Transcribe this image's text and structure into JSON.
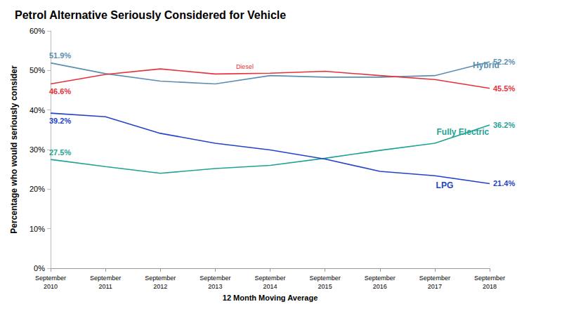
{
  "chart_data": {
    "type": "line",
    "title": "Petrol Alternative Seriously Considered for Vehicle",
    "x_label": "12 Month Moving Average",
    "y_label": "Percentage who would seriously consider",
    "categories": [
      "September 2010",
      "September 2011",
      "September 2012",
      "September 2013",
      "September 2014",
      "September 2015",
      "September 2016",
      "September 2017",
      "September 2018"
    ],
    "series": [
      {
        "name": "Hybrid",
        "color": "#5b8fb0",
        "values": [
          51.9,
          49.2,
          47.3,
          46.6,
          48.7,
          48.3,
          48.3,
          48.7,
          52.2
        ],
        "value_labels": [
          "51.9%",
          null,
          null,
          null,
          null,
          null,
          null,
          null,
          "52.2%"
        ]
      },
      {
        "name": "Diesel",
        "color": "#e5323a",
        "values": [
          46.6,
          49.0,
          50.4,
          49.1,
          49.3,
          49.8,
          48.7,
          47.7,
          45.5
        ],
        "value_labels": [
          "46.6%",
          null,
          null,
          null,
          null,
          null,
          null,
          null,
          "45.5%"
        ]
      },
      {
        "name": "Fully Electric",
        "color": "#1fa394",
        "values": [
          27.5,
          25.7,
          24.0,
          25.2,
          26.0,
          27.8,
          29.8,
          31.6,
          36.2
        ],
        "value_labels": [
          "27.5%",
          null,
          null,
          null,
          null,
          null,
          null,
          null,
          "36.2%"
        ]
      },
      {
        "name": "LPG",
        "color": "#2443c9",
        "values": [
          39.2,
          38.3,
          34.1,
          31.6,
          29.9,
          27.6,
          24.5,
          23.4,
          21.4
        ],
        "value_labels": [
          "39.2%",
          null,
          null,
          null,
          null,
          null,
          null,
          null,
          "21.4%"
        ]
      }
    ],
    "ylim": [
      0,
      60
    ],
    "yticks": [
      {
        "value": 0,
        "label": "0%"
      },
      {
        "value": 10,
        "label": "10%"
      },
      {
        "value": 20,
        "label": "20%"
      },
      {
        "value": 30,
        "label": "30%"
      },
      {
        "value": 40,
        "label": "40%"
      },
      {
        "value": 50,
        "label": "50%"
      },
      {
        "value": 60,
        "label": "60%"
      }
    ],
    "grid": false,
    "data_labels": true
  }
}
